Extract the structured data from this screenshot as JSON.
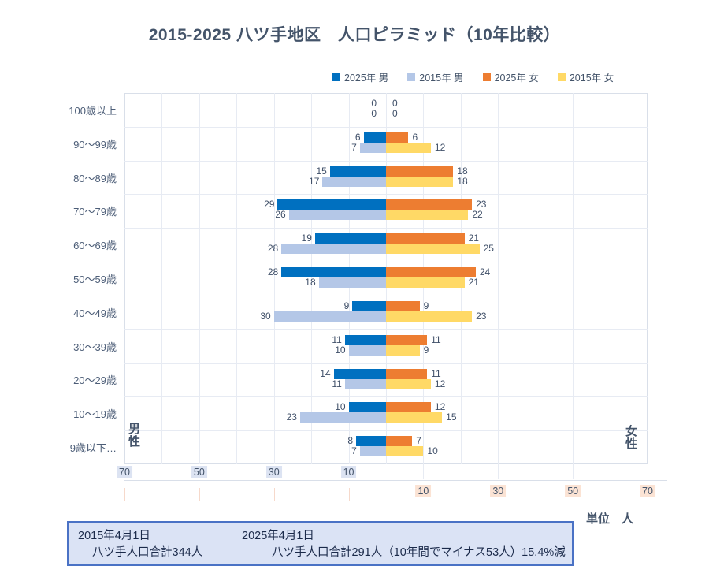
{
  "title": "2015-2025 八ツ手地区　人口ピラミッド（10年比較）",
  "legend": {
    "items": [
      {
        "label": "2025年 男",
        "color": "#0070C0"
      },
      {
        "label": "2015年 男",
        "color": "#B4C7E7"
      },
      {
        "label": "2025年 女",
        "color": "#ED7D31"
      },
      {
        "label": "2015年 女",
        "color": "#FFD966"
      }
    ]
  },
  "chart_data": {
    "type": "bar",
    "subtype": "population_pyramid",
    "title": "2015-2025 八ツ手地区　人口ピラミッド（10年比較）",
    "categories": [
      "100歳以上",
      "90〜99歳",
      "80〜89歳",
      "70〜79歳",
      "60〜69歳",
      "50〜59歳",
      "40〜49歳",
      "30〜39歳",
      "20〜29歳",
      "10〜19歳",
      "9歳以下…"
    ],
    "series": [
      {
        "name": "2025年 男",
        "key": "male-2025",
        "side": "left",
        "stack": "top",
        "color": "#0070C0",
        "values": [
          0,
          6,
          15,
          29,
          19,
          28,
          9,
          11,
          14,
          10,
          8
        ]
      },
      {
        "name": "2015年 男",
        "key": "male-2015",
        "side": "left",
        "stack": "bottom",
        "color": "#B4C7E7",
        "values": [
          0,
          7,
          17,
          26,
          28,
          18,
          30,
          10,
          11,
          23,
          7
        ]
      },
      {
        "name": "2025年 女",
        "key": "female-2025",
        "side": "right",
        "stack": "top",
        "color": "#ED7D31",
        "values": [
          0,
          6,
          18,
          23,
          21,
          24,
          9,
          11,
          11,
          12,
          7
        ]
      },
      {
        "name": "2015年 女",
        "key": "female-2015",
        "side": "right",
        "stack": "bottom",
        "color": "#FFD966",
        "values": [
          0,
          12,
          18,
          22,
          25,
          21,
          23,
          9,
          12,
          15,
          10
        ]
      }
    ],
    "x_axis": {
      "max": 70,
      "left_ticks": [
        70,
        50,
        30,
        10
      ],
      "right_ticks": [
        10,
        30,
        50,
        70
      ],
      "left_tick_bg": "#DCE3F2",
      "right_tick_bg": "#FBE3D4"
    },
    "side_labels": {
      "left": "男性",
      "right": "女性"
    },
    "unit_label": "単位　人",
    "data_labels": true,
    "grid": true,
    "legend_position": "top"
  },
  "footer": {
    "bg": "#DBE3F5",
    "border": "#4A72C5",
    "col1_line1": "2015年4月1日",
    "col1_line2": "八ツ手人口合計344人",
    "col2_line1": "2025年4月1日",
    "col2_line2": "八ツ手人口合計291人（10年間でマイナス53人）15.4%減"
  }
}
